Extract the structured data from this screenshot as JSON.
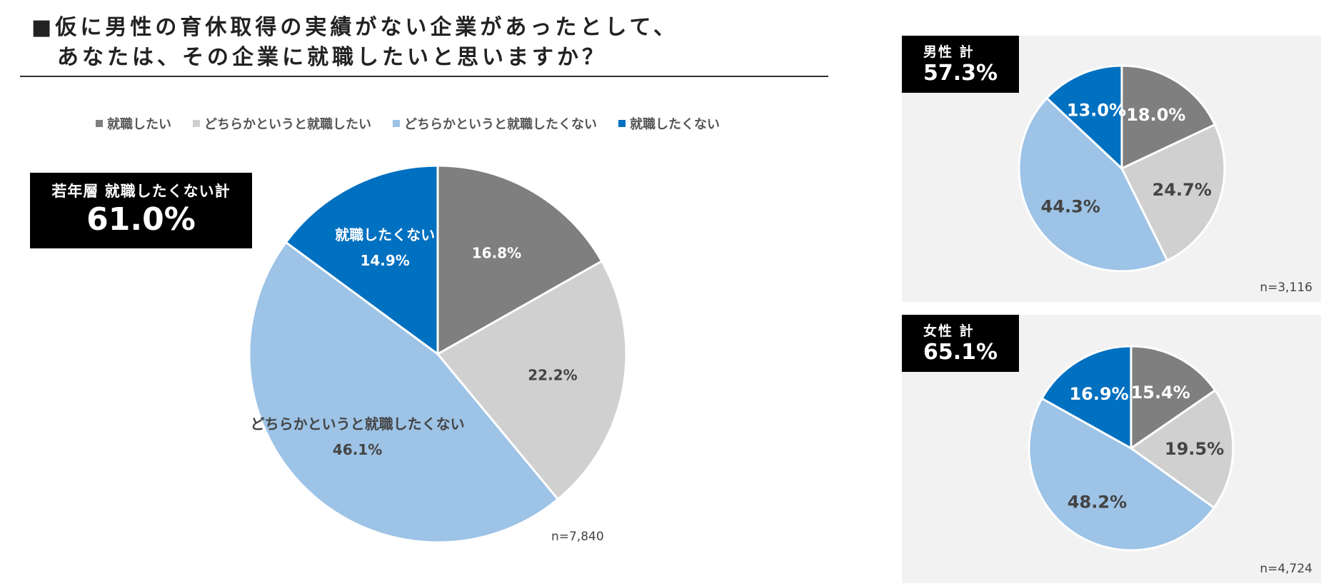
{
  "title": {
    "line1": "■仮に男性の育休取得の実績がない企業があったとして、",
    "line2": "あなたは、その企業に就職したいと思いますか？"
  },
  "legend": [
    {
      "label": "就職したい",
      "color": "#7f7f7f"
    },
    {
      "label": "どちらかというと就職したい",
      "color": "#d0d0d0"
    },
    {
      "label": "どちらかというと就職したくない",
      "color": "#9dc3e6"
    },
    {
      "label": "就職したくない",
      "color": "#0070c0"
    }
  ],
  "callout": {
    "label": "若年層 就職したくない計",
    "value": "61.0%"
  },
  "male_panel": {
    "label": "男性 計",
    "value": "57.3%",
    "n": "n=3,116"
  },
  "female_panel": {
    "label": "女性 計",
    "value": "65.1%",
    "n": "n=4,724"
  },
  "main_n": "n=7,840",
  "chart_data": [
    {
      "type": "pie",
      "title": "若年層",
      "categories": [
        "就職したい",
        "どちらかというと就職したい",
        "どちらかというと就職したくない",
        "就職したくない"
      ],
      "values": [
        16.8,
        22.2,
        46.1,
        14.9
      ],
      "labels": [
        "16.8%",
        "22.2%",
        "46.1%",
        "14.9%"
      ],
      "slice_titles": [
        "",
        "",
        "どちらかというと就職したくない",
        "就職したくない"
      ],
      "colors": [
        "#7f7f7f",
        "#d0d0d0",
        "#9dc3e6",
        "#0070c0"
      ],
      "label_colors": [
        "#ffffff",
        "#444444",
        "#444444",
        "#ffffff"
      ]
    },
    {
      "type": "pie",
      "title": "男性 計",
      "categories": [
        "就職したい",
        "どちらかというと就職したい",
        "どちらかというと就職したくない",
        "就職したくない"
      ],
      "values": [
        18.0,
        24.7,
        44.3,
        13.0
      ],
      "labels": [
        "18.0%",
        "24.7%",
        "44.3%",
        "13.0%"
      ],
      "colors": [
        "#7f7f7f",
        "#d0d0d0",
        "#9dc3e6",
        "#0070c0"
      ],
      "label_colors": [
        "#ffffff",
        "#444444",
        "#444444",
        "#ffffff"
      ]
    },
    {
      "type": "pie",
      "title": "女性 計",
      "categories": [
        "就職したい",
        "どちらかというと就職したい",
        "どちらかというと就職したくない",
        "就職したくない"
      ],
      "values": [
        15.4,
        19.5,
        48.2,
        16.9
      ],
      "labels": [
        "15.4%",
        "19.5%",
        "48.2%",
        "16.9%"
      ],
      "colors": [
        "#7f7f7f",
        "#d0d0d0",
        "#9dc3e6",
        "#0070c0"
      ],
      "label_colors": [
        "#ffffff",
        "#444444",
        "#444444",
        "#ffffff"
      ]
    }
  ]
}
